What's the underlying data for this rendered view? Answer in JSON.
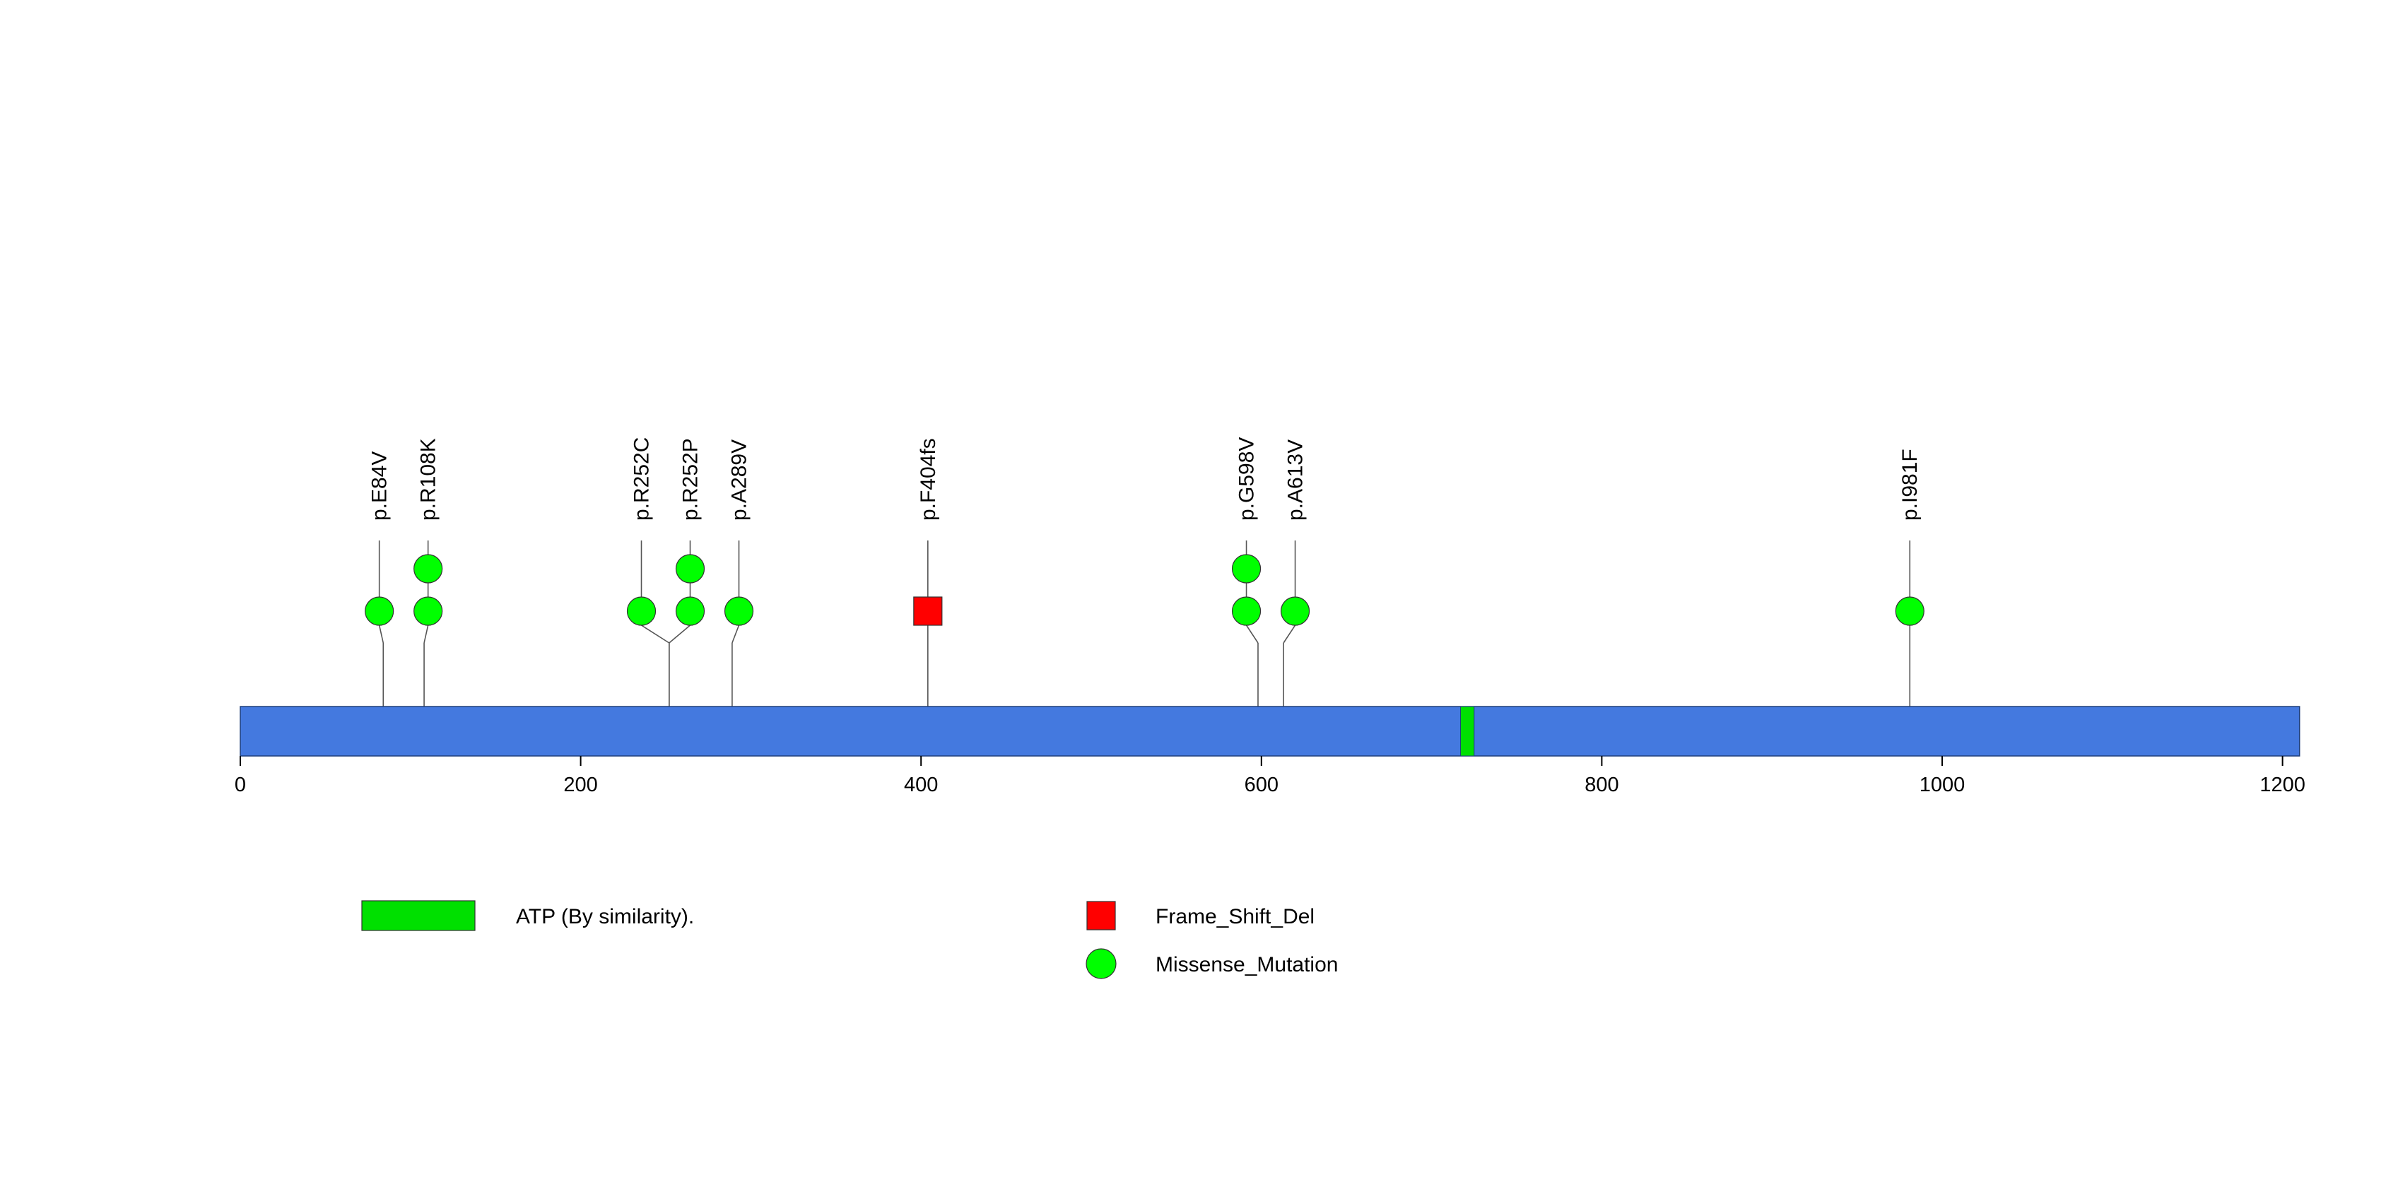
{
  "chart_data": {
    "type": "lollipop",
    "protein_length": 1210,
    "x_axis": {
      "min": 0,
      "max": 1210,
      "ticks": [
        0,
        200,
        400,
        600,
        800,
        1000,
        1200
      ],
      "tick_labels": [
        "0",
        "200",
        "400",
        "600",
        "800",
        "1000",
        "1200"
      ]
    },
    "backbone_color": "#4479DF",
    "domains": [
      {
        "name": "ATP (By similarity).",
        "start": 717,
        "end": 725,
        "color": "#00E000"
      }
    ],
    "mutation_types": [
      {
        "name": "Frame_Shift_Del",
        "shape": "square",
        "color": "#FF0000"
      },
      {
        "name": "Missense_Mutation",
        "shape": "circle",
        "color": "#00FF00"
      }
    ],
    "mutations": [
      {
        "label": "p.E84V",
        "position": 84,
        "count": 1,
        "type": "Missense_Mutation"
      },
      {
        "label": "p.R108K",
        "position": 108,
        "count": 2,
        "type": "Missense_Mutation"
      },
      {
        "label": "p.R252C",
        "position": 252,
        "count": 1,
        "type": "Missense_Mutation"
      },
      {
        "label": "p.R252P",
        "position": 252,
        "count": 2,
        "type": "Missense_Mutation"
      },
      {
        "label": "p.A289V",
        "position": 289,
        "count": 1,
        "type": "Missense_Mutation"
      },
      {
        "label": "p.F404fs",
        "position": 404,
        "count": 1,
        "type": "Frame_Shift_Del"
      },
      {
        "label": "p.G598V",
        "position": 598,
        "count": 2,
        "type": "Missense_Mutation"
      },
      {
        "label": "p.A613V",
        "position": 613,
        "count": 1,
        "type": "Missense_Mutation"
      },
      {
        "label": "p.I981F",
        "position": 981,
        "count": 1,
        "type": "Missense_Mutation"
      }
    ],
    "legend": {
      "domains": [
        "ATP (By similarity)."
      ],
      "mutation_types": [
        "Frame_Shift_Del",
        "Missense_Mutation"
      ]
    }
  }
}
